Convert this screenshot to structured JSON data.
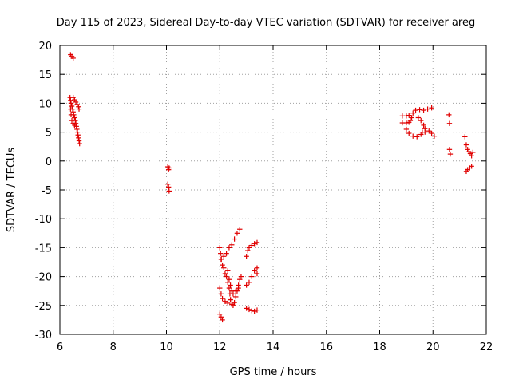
{
  "chart_data": {
    "type": "scatter",
    "title": "Day 115 of 2023, Sidereal Day-to-day VTEC variation (SDTVAR) for receiver areg",
    "xlabel": "GPS time / hours",
    "ylabel": "SDTVAR / TECUs",
    "xlim": [
      6,
      22
    ],
    "ylim": [
      -30,
      20
    ],
    "xticks": [
      6,
      8,
      10,
      12,
      14,
      16,
      18,
      20,
      22
    ],
    "yticks": [
      -30,
      -25,
      -20,
      -15,
      -10,
      -5,
      0,
      5,
      10,
      15,
      20
    ],
    "grid": true,
    "marker": "+",
    "color": "#e00000",
    "series": [
      {
        "points": [
          [
            6.4,
            18.4
          ],
          [
            6.45,
            18.1
          ],
          [
            6.5,
            17.8
          ],
          [
            6.38,
            11.0
          ],
          [
            6.4,
            10.5
          ],
          [
            6.42,
            10.0
          ],
          [
            6.45,
            9.5
          ],
          [
            6.48,
            9.0
          ],
          [
            6.5,
            8.5
          ],
          [
            6.52,
            8.0
          ],
          [
            6.55,
            7.5
          ],
          [
            6.58,
            7.0
          ],
          [
            6.6,
            6.5
          ],
          [
            6.62,
            6.0
          ],
          [
            6.64,
            5.5
          ],
          [
            6.66,
            5.0
          ],
          [
            6.68,
            4.5
          ],
          [
            6.7,
            4.0
          ],
          [
            6.72,
            3.5
          ],
          [
            6.74,
            3.0
          ],
          [
            6.5,
            11.0
          ],
          [
            6.55,
            10.6
          ],
          [
            6.6,
            10.2
          ],
          [
            6.65,
            9.8
          ],
          [
            6.7,
            9.4
          ],
          [
            6.72,
            9.0
          ],
          [
            6.4,
            9.0
          ],
          [
            6.42,
            8.0
          ],
          [
            6.45,
            7.0
          ],
          [
            6.5,
            6.5
          ],
          [
            6.55,
            6.2
          ],
          [
            10.05,
            -1.0
          ],
          [
            10.08,
            -1.5
          ],
          [
            10.1,
            -1.2
          ],
          [
            10.05,
            -4.0
          ],
          [
            10.08,
            -4.5
          ],
          [
            10.1,
            -5.2
          ],
          [
            12.0,
            -15.0
          ],
          [
            12.03,
            -16.0
          ],
          [
            12.06,
            -17.0
          ],
          [
            12.1,
            -18.0
          ],
          [
            12.15,
            -18.5
          ],
          [
            12.2,
            -19.5
          ],
          [
            12.25,
            -20.0
          ],
          [
            12.3,
            -21.0
          ],
          [
            12.35,
            -22.0
          ],
          [
            12.38,
            -23.0
          ],
          [
            12.4,
            -24.0
          ],
          [
            12.45,
            -24.8
          ],
          [
            12.5,
            -25.0
          ],
          [
            12.55,
            -24.5
          ],
          [
            12.6,
            -23.5
          ],
          [
            12.65,
            -22.5
          ],
          [
            12.7,
            -21.5
          ],
          [
            12.75,
            -20.5
          ],
          [
            12.8,
            -20.0
          ],
          [
            12.0,
            -22.0
          ],
          [
            12.05,
            -23.0
          ],
          [
            12.1,
            -23.8
          ],
          [
            12.2,
            -24.3
          ],
          [
            12.3,
            -24.6
          ],
          [
            12.4,
            -24.0
          ],
          [
            12.5,
            -23.0
          ],
          [
            12.6,
            -22.5
          ],
          [
            12.7,
            -22.0
          ],
          [
            12.05,
            -17.0
          ],
          [
            12.15,
            -16.5
          ],
          [
            12.25,
            -16.0
          ],
          [
            12.35,
            -15.0
          ],
          [
            12.45,
            -14.5
          ],
          [
            12.55,
            -13.5
          ],
          [
            12.65,
            -12.5
          ],
          [
            12.75,
            -11.8
          ],
          [
            12.3,
            -19.0
          ],
          [
            12.35,
            -20.5
          ],
          [
            12.4,
            -21.5
          ],
          [
            12.45,
            -22.5
          ],
          [
            12.0,
            -26.5
          ],
          [
            12.05,
            -27.0
          ],
          [
            12.1,
            -27.5
          ],
          [
            13.0,
            -16.5
          ],
          [
            13.05,
            -15.5
          ],
          [
            13.1,
            -15.0
          ],
          [
            13.2,
            -14.6
          ],
          [
            13.3,
            -14.3
          ],
          [
            13.4,
            -14.1
          ],
          [
            13.0,
            -21.5
          ],
          [
            13.1,
            -21.0
          ],
          [
            13.2,
            -20.0
          ],
          [
            13.3,
            -19.0
          ],
          [
            13.4,
            -18.5
          ],
          [
            13.4,
            -19.5
          ],
          [
            13.0,
            -25.5
          ],
          [
            13.1,
            -25.7
          ],
          [
            13.2,
            -25.9
          ],
          [
            13.3,
            -26.0
          ],
          [
            13.4,
            -25.8
          ],
          [
            18.85,
            7.8
          ],
          [
            19.0,
            7.8
          ],
          [
            19.1,
            7.9
          ],
          [
            19.15,
            7.0
          ],
          [
            18.85,
            6.6
          ],
          [
            19.0,
            6.6
          ],
          [
            19.1,
            6.7
          ],
          [
            19.2,
            7.5
          ],
          [
            19.25,
            8.3
          ],
          [
            19.35,
            8.8
          ],
          [
            19.5,
            8.9
          ],
          [
            19.65,
            8.8
          ],
          [
            19.8,
            9.0
          ],
          [
            19.95,
            9.2
          ],
          [
            19.45,
            7.5
          ],
          [
            19.55,
            7.0
          ],
          [
            19.65,
            6.2
          ],
          [
            19.7,
            5.6
          ],
          [
            19.6,
            5.0
          ],
          [
            19.0,
            5.5
          ],
          [
            19.1,
            4.8
          ],
          [
            19.25,
            4.3
          ],
          [
            19.4,
            4.2
          ],
          [
            19.55,
            4.6
          ],
          [
            19.7,
            5.0
          ],
          [
            19.85,
            5.2
          ],
          [
            19.95,
            4.8
          ],
          [
            20.05,
            4.3
          ],
          [
            20.6,
            8.0
          ],
          [
            20.62,
            6.5
          ],
          [
            20.62,
            2.0
          ],
          [
            20.65,
            1.2
          ],
          [
            21.2,
            4.2
          ],
          [
            21.25,
            2.8
          ],
          [
            21.3,
            2.0
          ],
          [
            21.35,
            1.6
          ],
          [
            21.4,
            1.3
          ],
          [
            21.45,
            0.9
          ],
          [
            21.5,
            1.5
          ],
          [
            21.25,
            -1.8
          ],
          [
            21.3,
            -1.5
          ],
          [
            21.38,
            -1.2
          ],
          [
            21.45,
            -0.9
          ]
        ]
      }
    ]
  }
}
